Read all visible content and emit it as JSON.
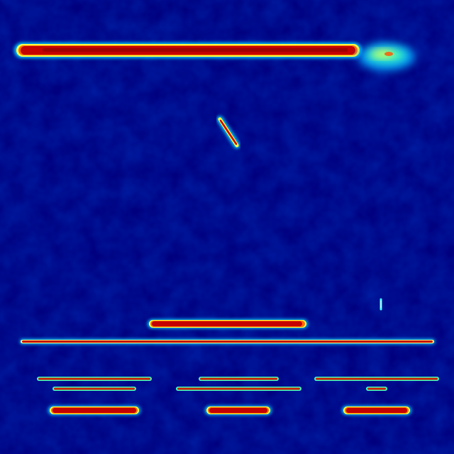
{
  "image": {
    "kind": "jet-colormap-heatmap",
    "background_color": "#00007f",
    "colormap": [
      "#00007f",
      "#0000ff",
      "#00bfff",
      "#40ffbf",
      "#ffff00",
      "#ff7f00",
      "#cc0000",
      "#a00000"
    ]
  }
}
